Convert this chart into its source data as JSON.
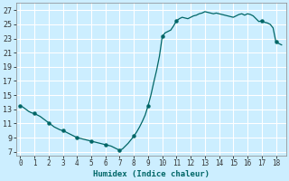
{
  "xlabel": "Humidex (Indice chaleur)",
  "xlim": [
    -0.3,
    18.7
  ],
  "ylim": [
    6.5,
    28
  ],
  "yticks": [
    7,
    9,
    11,
    13,
    15,
    17,
    19,
    21,
    23,
    25,
    27
  ],
  "xticks": [
    0,
    1,
    2,
    3,
    4,
    5,
    6,
    7,
    8,
    9,
    10,
    11,
    12,
    13,
    14,
    15,
    16,
    17,
    18
  ],
  "bg_color": "#cceeff",
  "grid_color": "#ffffff",
  "line_color": "#006666",
  "x_pts": [
    0.0,
    0.2,
    0.4,
    0.6,
    0.8,
    1.0,
    1.2,
    1.4,
    1.6,
    1.8,
    2.0,
    2.2,
    2.4,
    2.6,
    2.8,
    3.0,
    3.2,
    3.4,
    3.6,
    3.8,
    4.0,
    4.2,
    4.4,
    4.6,
    4.8,
    5.0,
    5.2,
    5.4,
    5.6,
    5.8,
    6.0,
    6.2,
    6.4,
    6.6,
    6.8,
    7.0,
    7.2,
    7.4,
    7.6,
    7.8,
    8.0,
    8.2,
    8.4,
    8.6,
    8.8,
    9.0,
    9.2,
    9.4,
    9.6,
    9.8,
    10.0,
    10.2,
    10.4,
    10.6,
    10.8,
    11.0,
    11.2,
    11.4,
    11.6,
    11.8,
    12.0,
    12.2,
    12.4,
    12.6,
    12.8,
    13.0,
    13.2,
    13.4,
    13.6,
    13.8,
    14.0,
    14.2,
    14.4,
    14.6,
    14.8,
    15.0,
    15.2,
    15.4,
    15.6,
    15.8,
    16.0,
    16.2,
    16.4,
    16.6,
    16.8,
    17.0,
    17.2,
    17.4,
    17.6,
    17.8,
    18.0,
    18.2,
    18.4
  ],
  "y_pts": [
    13.5,
    13.3,
    13.0,
    12.7,
    12.5,
    12.4,
    12.2,
    12.0,
    11.7,
    11.4,
    11.1,
    10.8,
    10.5,
    10.3,
    10.1,
    10.0,
    9.8,
    9.6,
    9.4,
    9.2,
    9.0,
    8.9,
    8.8,
    8.7,
    8.6,
    8.5,
    8.4,
    8.3,
    8.2,
    8.1,
    8.0,
    7.9,
    7.8,
    7.6,
    7.4,
    7.2,
    7.4,
    7.8,
    8.2,
    8.7,
    9.2,
    9.8,
    10.5,
    11.3,
    12.2,
    13.5,
    15.0,
    16.8,
    18.5,
    20.5,
    23.3,
    23.8,
    24.0,
    24.2,
    24.8,
    25.5,
    25.8,
    26.0,
    25.9,
    25.8,
    26.0,
    26.2,
    26.3,
    26.5,
    26.6,
    26.8,
    26.7,
    26.6,
    26.5,
    26.6,
    26.5,
    26.4,
    26.3,
    26.2,
    26.1,
    26.0,
    26.2,
    26.4,
    26.5,
    26.3,
    26.5,
    26.4,
    26.2,
    25.8,
    25.4,
    25.5,
    25.3,
    25.2,
    25.0,
    24.5,
    22.5,
    22.3,
    22.1
  ],
  "marker_x": [
    0,
    1,
    2,
    3,
    4,
    5,
    6,
    7,
    8,
    9,
    10,
    11,
    17,
    18
  ],
  "marker_y": [
    13.5,
    12.4,
    11.1,
    10.0,
    9.0,
    8.5,
    8.0,
    7.2,
    9.2,
    13.5,
    23.3,
    25.5,
    25.5,
    22.5
  ]
}
